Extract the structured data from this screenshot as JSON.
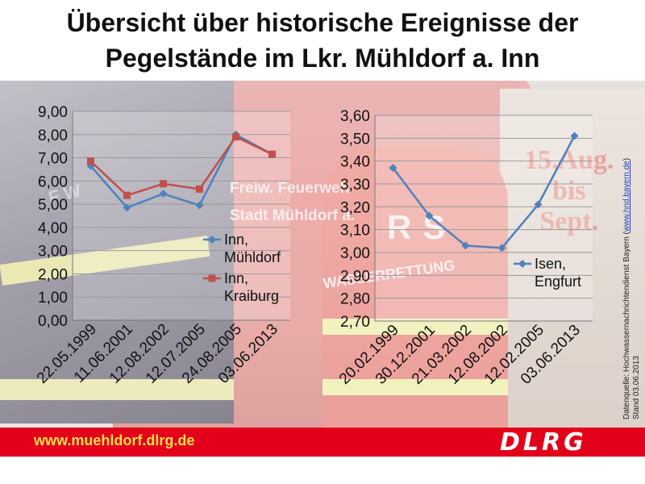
{
  "title": {
    "line1": "Übersicht über historische Ereignisse der",
    "line2": "Pegelstände im Lkr. Mühldorf a. Inn"
  },
  "background_text": {
    "truck_line1": "Freiw. Feuerweh",
    "truck_line2": "Stadt Mühldorf a.",
    "aug_line1": "15.Aug.",
    "aug_line2": "bis",
    "aug_line3": "Sept.",
    "rs": "RS",
    "wasserrettung": "WASSERRETTUNG",
    "fw": "F W"
  },
  "chart_data": [
    {
      "type": "line",
      "categories": [
        "22.05.1999",
        "11.06.2001",
        "12.08.2002",
        "12.07.2005",
        "24.08.2005",
        "03.06.2013"
      ],
      "series": [
        {
          "name": "Inn, Mühldorf",
          "values": [
            6.65,
            4.85,
            5.45,
            4.95,
            8.0,
            7.15
          ],
          "color": "#4f81bd"
        },
        {
          "name": "Inn, Kraiburg",
          "values": [
            6.85,
            5.38,
            5.88,
            5.65,
            7.9,
            7.15
          ],
          "color": "#c0504d"
        }
      ],
      "ylim": [
        0,
        9
      ],
      "yticks": [
        "0,00",
        "1,00",
        "2,00",
        "3,00",
        "4,00",
        "5,00",
        "6,00",
        "7,00",
        "8,00",
        "9,00"
      ],
      "grid": true,
      "legend_position": "right"
    },
    {
      "type": "line",
      "categories": [
        "20.02.1999",
        "30.12.2001",
        "21.03.2002",
        "12.08.2002",
        "12.02.2005",
        "03.06.2013"
      ],
      "series": [
        {
          "name": "Isen, Engfurt",
          "values": [
            3.37,
            3.16,
            3.03,
            3.02,
            3.21,
            3.51
          ],
          "color": "#4f81bd"
        }
      ],
      "ylim": [
        2.7,
        3.6
      ],
      "yticks": [
        "2,70",
        "2,80",
        "2,90",
        "3,00",
        "3,10",
        "3,20",
        "3,30",
        "3,40",
        "3,50",
        "3,60"
      ],
      "grid": true,
      "legend_position": "right"
    }
  ],
  "source": {
    "prefix": "Datenquelle: Hochwassernachrichtendienst Bayern (",
    "link": "www.hnd.bayern.de",
    "suffix": ")",
    "date": "Stand 03.06.2013"
  },
  "footer": {
    "url": "www.muehldorf.dlrg.de",
    "logo": "DLRG"
  }
}
